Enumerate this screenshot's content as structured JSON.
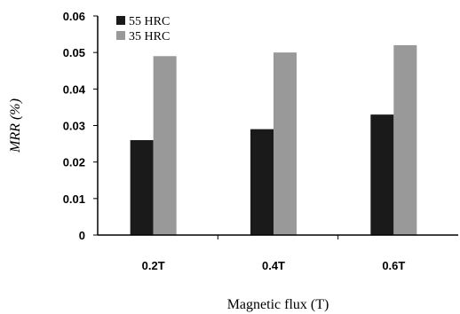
{
  "chart_data": {
    "type": "bar",
    "title": "",
    "xlabel": "Magnetic flux (T)",
    "ylabel": "MRR (%)",
    "categories": [
      "0.2T",
      "0.4T",
      "0.6T"
    ],
    "series": [
      {
        "name": "55 HRC",
        "values": [
          0.026,
          0.029,
          0.033
        ],
        "color": "#1a1a1a"
      },
      {
        "name": "35 HRC",
        "values": [
          0.049,
          0.05,
          0.052
        ],
        "color": "#999999"
      }
    ],
    "yticks": [
      "0",
      "0.01",
      "0.02",
      "0.03",
      "0.04",
      "0.05",
      "0.06"
    ],
    "ylim": [
      0,
      0.06
    ],
    "grid": false,
    "legend": "top-left"
  }
}
